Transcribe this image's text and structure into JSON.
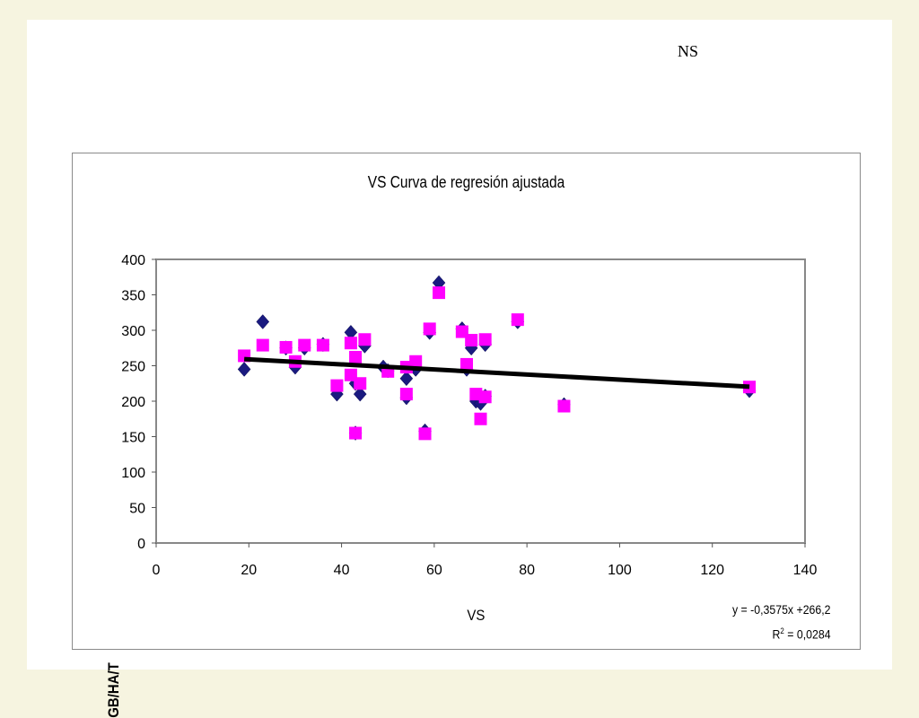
{
  "slide": {
    "corner_text": "NS"
  },
  "equation": {
    "line1": "y = -0,3575x +266,2",
    "r2_prefix": "R",
    "r2_exp": "2",
    "r2_value": " = 0,0284"
  },
  "colors": {
    "series1": "#1a1a80",
    "series2": "#ff00ff",
    "trend": "#000000",
    "background": "#f6f4e0"
  },
  "chart_data": {
    "type": "scatter",
    "title": "VS Curva de regresión ajustada",
    "xlabel": "VS",
    "ylabel": "GB/HA/T",
    "xlim": [
      0,
      140
    ],
    "ylim": [
      0,
      400
    ],
    "xticks": [
      "0",
      "20",
      "40",
      "60",
      "80",
      "100",
      "120",
      "140"
    ],
    "yticks": [
      "0",
      "50",
      "100",
      "150",
      "200",
      "250",
      "300",
      "350",
      "400"
    ],
    "grid": false,
    "series": [
      {
        "marker": "diamond",
        "points": [
          [
            19,
            245
          ],
          [
            23,
            312
          ],
          [
            28,
            275
          ],
          [
            30,
            248
          ],
          [
            32,
            275
          ],
          [
            36,
            280
          ],
          [
            39,
            210
          ],
          [
            42,
            297
          ],
          [
            43,
            225
          ],
          [
            43,
            155
          ],
          [
            44,
            210
          ],
          [
            45,
            278
          ],
          [
            49,
            248
          ],
          [
            50,
            243
          ],
          [
            54,
            232
          ],
          [
            54,
            205
          ],
          [
            56,
            245
          ],
          [
            58,
            158
          ],
          [
            59,
            297
          ],
          [
            61,
            367
          ],
          [
            66,
            302
          ],
          [
            67,
            245
          ],
          [
            68,
            275
          ],
          [
            69,
            200
          ],
          [
            70,
            197
          ],
          [
            71,
            280
          ],
          [
            71,
            207
          ],
          [
            78,
            312
          ],
          [
            88,
            195
          ],
          [
            128,
            215
          ]
        ]
      },
      {
        "marker": "square",
        "points": [
          [
            19,
            264
          ],
          [
            23,
            279
          ],
          [
            28,
            276
          ],
          [
            30,
            256
          ],
          [
            32,
            279
          ],
          [
            36,
            279
          ],
          [
            39,
            222
          ],
          [
            42,
            282
          ],
          [
            42,
            237
          ],
          [
            43,
            262
          ],
          [
            43,
            155
          ],
          [
            44,
            225
          ],
          [
            45,
            287
          ],
          [
            50,
            242
          ],
          [
            54,
            210
          ],
          [
            54,
            248
          ],
          [
            56,
            256
          ],
          [
            58,
            154
          ],
          [
            59,
            302
          ],
          [
            61,
            353
          ],
          [
            66,
            298
          ],
          [
            67,
            252
          ],
          [
            68,
            286
          ],
          [
            69,
            210
          ],
          [
            70,
            175
          ],
          [
            71,
            287
          ],
          [
            71,
            206
          ],
          [
            78,
            315
          ],
          [
            88,
            193
          ],
          [
            128,
            220
          ]
        ]
      }
    ],
    "trendline": {
      "x": [
        19,
        128
      ],
      "y": [
        259.4,
        220.4
      ]
    }
  }
}
